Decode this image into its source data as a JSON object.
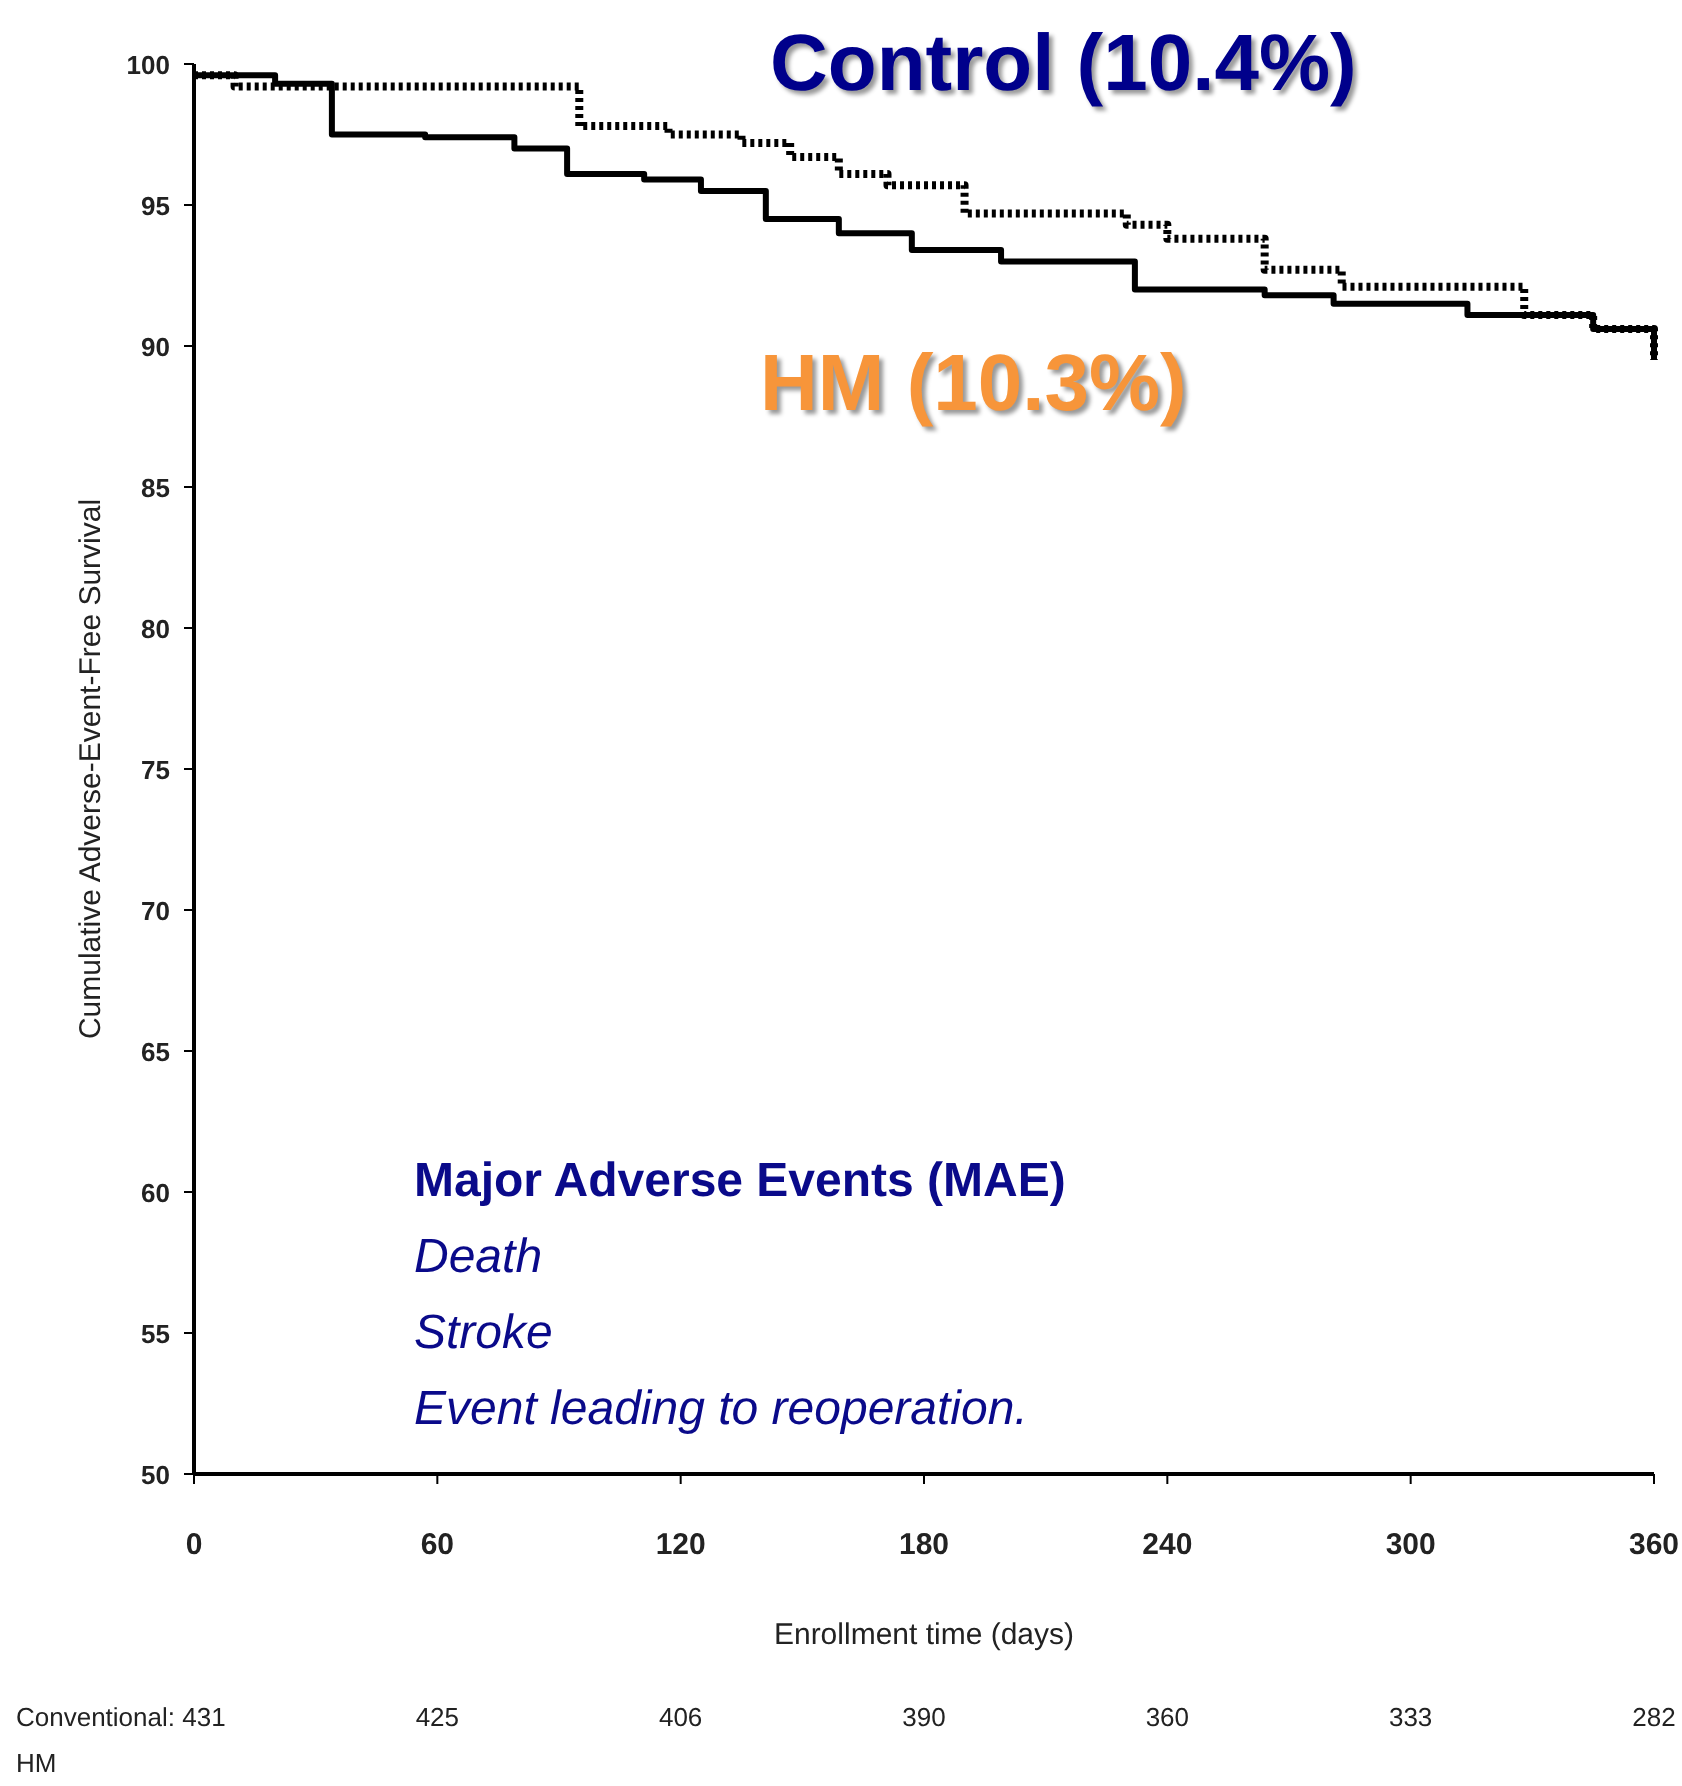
{
  "chart_data": {
    "type": "step",
    "xlabel": "Enrollment time (days)",
    "ylabel": "Cumulative Adverse-Event-Free Survival",
    "xlim": [
      0,
      360
    ],
    "xticks": [
      0,
      60,
      120,
      180,
      240,
      300,
      360
    ],
    "ylim": [
      50,
      100
    ],
    "yticks": [
      50,
      55,
      60,
      65,
      70,
      75,
      80,
      85,
      90,
      95,
      100
    ],
    "grid": false,
    "series": [
      {
        "name": "Control (10.4%)",
        "color": "#000000",
        "line_style": "dotted",
        "x": [
          0,
          10,
          83,
          95,
          117,
          135,
          147,
          159,
          171,
          190,
          220,
          230,
          240,
          264,
          283,
          328,
          345,
          360
        ],
        "values": [
          99.6,
          99.2,
          99.2,
          97.8,
          97.5,
          97.2,
          96.7,
          96.1,
          95.7,
          94.7,
          94.7,
          94.3,
          93.8,
          92.7,
          92.1,
          91.1,
          90.6,
          89.5
        ]
      },
      {
        "name": "HM (10.3%)",
        "color": "#000000",
        "line_style": "solid",
        "x": [
          0,
          20,
          34,
          57,
          79,
          92,
          111,
          125,
          141,
          159,
          177,
          199,
          232,
          264,
          281,
          314,
          345,
          360
        ],
        "values": [
          99.6,
          99.3,
          97.5,
          97.4,
          97.0,
          96.1,
          95.9,
          95.5,
          94.5,
          94.0,
          93.4,
          93.0,
          92.0,
          91.8,
          91.5,
          91.1,
          90.6,
          89.5
        ]
      }
    ],
    "annotations": [
      "Major Adverse Events (MAE)",
      "Death",
      "Stroke",
      "Event leading to reoperation.",
      "Conventional: 431",
      "425",
      "406",
      "390",
      "360",
      "333",
      "282",
      "HM"
    ]
  }
}
